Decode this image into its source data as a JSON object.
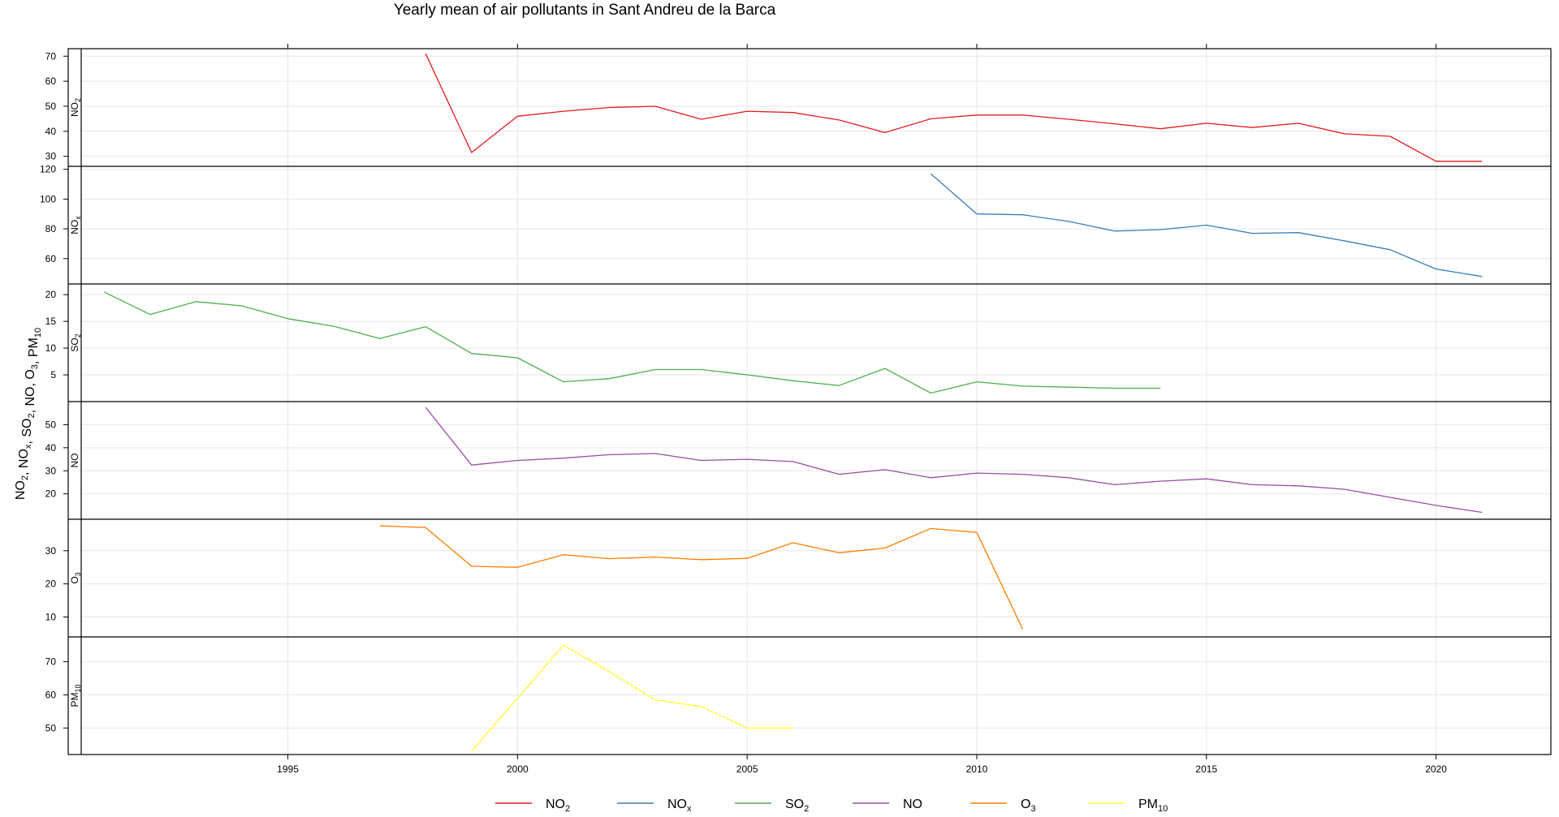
{
  "chart_data": {
    "type": "line",
    "title": "Yearly mean of air pollutants in Sant Andreu de la Barca",
    "ylabel": {
      "parts": [
        [
          "NO",
          "2"
        ],
        [
          "NO",
          "x"
        ],
        [
          "SO",
          "2"
        ],
        [
          "NO",
          ""
        ],
        [
          "O",
          "3"
        ],
        [
          "PM",
          "10"
        ]
      ],
      "sep": ", "
    },
    "xlim": [
      1990.5,
      2022.5
    ],
    "x_ticks": [
      1995,
      2000,
      2005,
      2010,
      2015,
      2020
    ],
    "grid": true,
    "legend_position": "bottom",
    "panels": [
      {
        "name": "NO2",
        "base": "NO",
        "sub": "2",
        "color": "#e41a1c",
        "ylim": [
          26,
          73
        ],
        "yticks": [
          30,
          40,
          50,
          60,
          70
        ],
        "x": [
          1998,
          1999,
          2000,
          2001,
          2002,
          2003,
          2004,
          2005,
          2006,
          2007,
          2008,
          2009,
          2010,
          2011,
          2012,
          2013,
          2014,
          2015,
          2016,
          2017,
          2018,
          2019,
          2020,
          2021
        ],
        "values": [
          71,
          31.5,
          46,
          48,
          49.5,
          50,
          44.8,
          48,
          47.5,
          44.5,
          39.5,
          45,
          46.5,
          46.5,
          44.8,
          43,
          41,
          43.2,
          41.5,
          43.2,
          39,
          38,
          28,
          28
        ]
      },
      {
        "name": "NOx",
        "base": "NO",
        "sub": "x",
        "color": "#377eb8",
        "ylim": [
          43,
          122
        ],
        "yticks": [
          60,
          80,
          100,
          120
        ],
        "x": [
          2009,
          2010,
          2011,
          2012,
          2013,
          2014,
          2015,
          2016,
          2017,
          2018,
          2019,
          2020,
          2021
        ],
        "values": [
          117,
          90,
          89.5,
          85,
          78.5,
          79.5,
          82.5,
          77,
          77.5,
          72,
          66,
          53,
          48
        ]
      },
      {
        "name": "SO2",
        "base": "SO",
        "sub": "2",
        "color": "#4daf4a",
        "ylim": [
          0,
          22
        ],
        "yticks": [
          5,
          10,
          15,
          20
        ],
        "x": [
          1991,
          1992,
          1993,
          1994,
          1995,
          1996,
          1997,
          1998,
          1999,
          2000,
          2001,
          2002,
          2003,
          2004,
          2005,
          2006,
          2007,
          2008,
          2009,
          2010,
          2011,
          2012,
          2013,
          2014
        ],
        "values": [
          20.5,
          16.3,
          18.7,
          17.9,
          15.5,
          14.1,
          11.8,
          14,
          9,
          8.2,
          3.7,
          4.3,
          6,
          6,
          5,
          3.9,
          3,
          6.2,
          1.6,
          3.7,
          2.9,
          2.7,
          2.5,
          2.5
        ]
      },
      {
        "name": "NO",
        "base": "NO",
        "sub": "",
        "color": "#984ea3",
        "ylim": [
          9,
          60
        ],
        "yticks": [
          20,
          30,
          40,
          50
        ],
        "x": [
          1998,
          1999,
          2000,
          2001,
          2002,
          2003,
          2004,
          2005,
          2006,
          2007,
          2008,
          2009,
          2010,
          2011,
          2012,
          2013,
          2014,
          2015,
          2016,
          2017,
          2018,
          2019,
          2020,
          2021
        ],
        "values": [
          57.5,
          32.5,
          34.5,
          35.5,
          37,
          37.5,
          34.5,
          35,
          34,
          28.5,
          30.5,
          27,
          29,
          28.5,
          27,
          24,
          25.5,
          26.5,
          24,
          23.5,
          22,
          18.5,
          15,
          12
        ]
      },
      {
        "name": "O3",
        "base": "O",
        "sub": "3",
        "color": "#ff7f00",
        "ylim": [
          4,
          39.5
        ],
        "yticks": [
          10,
          20,
          30
        ],
        "x": [
          1997,
          1998,
          1999,
          2000,
          2001,
          2002,
          2003,
          2004,
          2005,
          2006,
          2007,
          2008,
          2009,
          2010,
          2011
        ],
        "values": [
          37.5,
          37,
          25.3,
          25,
          28.8,
          27.6,
          28.1,
          27.3,
          27.7,
          32.4,
          29.4,
          30.8,
          36.7,
          35.5,
          6.3
        ]
      },
      {
        "name": "PM10",
        "base": "PM",
        "sub": "10",
        "color": "#ffff33",
        "ylim": [
          42,
          77.5
        ],
        "yticks": [
          50,
          60,
          70
        ],
        "x": [
          1999,
          2000,
          2001,
          2002,
          2003,
          2004,
          2005,
          2006
        ],
        "values": [
          43,
          59,
          75,
          67,
          58.5,
          56.5,
          50,
          50
        ]
      }
    ]
  }
}
